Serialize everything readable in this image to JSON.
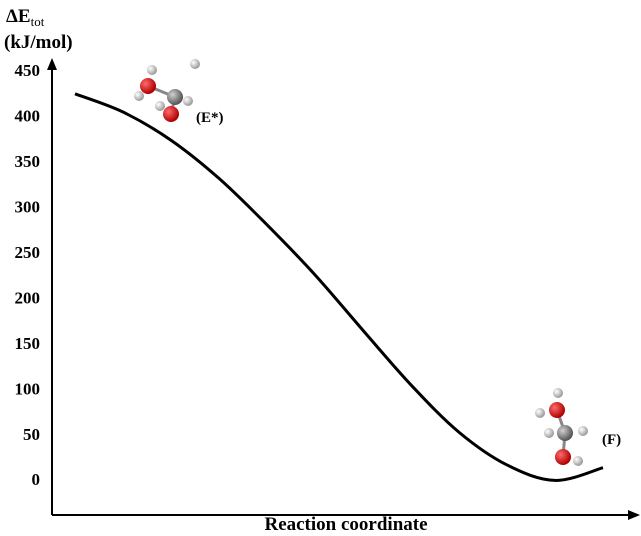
{
  "chart_data": {
    "type": "line",
    "y_label": {
      "symbol": "ΔE",
      "subscript": "tot",
      "unit": "(kJ/mol)"
    },
    "x_label": "Reaction coordinate",
    "categories": [
      null,
      null,
      null,
      null,
      null,
      null,
      null,
      null,
      null,
      null,
      null,
      null
    ],
    "values": [
      426,
      406,
      375,
      333,
      282,
      227,
      166,
      106,
      54,
      18,
      1,
      15
    ],
    "color": "#000000",
    "ylim": [
      -37,
      461
    ],
    "yticks": [
      0,
      50,
      100,
      150,
      200,
      250,
      300,
      350,
      400,
      450
    ],
    "annotations": [
      "(E*)",
      "(F)"
    ]
  }
}
